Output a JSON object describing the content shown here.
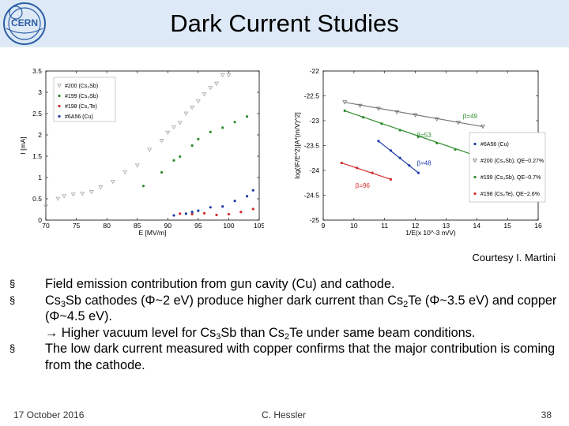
{
  "header": {
    "title": "Dark Current Studies",
    "logo_text": "CERN"
  },
  "chart_data": [
    {
      "type": "scatter",
      "xlabel": "E [MV/m]",
      "ylabel": "I [mA]",
      "xlim": [
        70,
        105
      ],
      "ylim": [
        0,
        3.5
      ],
      "xticks": [
        "70",
        "75",
        "80",
        "85",
        "90",
        "95",
        "100",
        "105"
      ],
      "yticks": [
        "0",
        "0.5",
        "1",
        "1.5",
        "2",
        "2.5",
        "3",
        "3.5"
      ],
      "legend_position": "top-left",
      "series": [
        {
          "name": "#200 (Cs3Sb)",
          "color": "#a8a8a8",
          "marker": "triangle",
          "points": [
            [
              70,
              0.32
            ],
            [
              72,
              0.5
            ],
            [
              73,
              0.56
            ],
            [
              74.5,
              0.6
            ],
            [
              76,
              0.62
            ],
            [
              77.5,
              0.66
            ],
            [
              79,
              0.77
            ],
            [
              81,
              0.9
            ],
            [
              83,
              1.12
            ],
            [
              85,
              1.28
            ],
            [
              87,
              1.65
            ],
            [
              89,
              1.86
            ],
            [
              90,
              2.05
            ],
            [
              91,
              2.18
            ],
            [
              92,
              2.28
            ],
            [
              93,
              2.5
            ],
            [
              94,
              2.64
            ],
            [
              95,
              2.79
            ],
            [
              96,
              2.95
            ],
            [
              97,
              3.1
            ],
            [
              98,
              3.2
            ],
            [
              99,
              3.4
            ],
            [
              100,
              3.4
            ]
          ]
        },
        {
          "name": "#199 (Cs3Sb)",
          "color": "#2e8b2e",
          "marker": "dot",
          "points": [
            [
              86,
              0.8
            ],
            [
              89,
              1.12
            ],
            [
              91,
              1.4
            ],
            [
              92,
              1.49
            ],
            [
              94,
              1.75
            ],
            [
              95,
              1.9
            ],
            [
              97,
              2.07
            ],
            [
              99,
              2.17
            ],
            [
              101,
              2.3
            ],
            [
              103,
              2.43
            ]
          ]
        },
        {
          "name": "#198 (Cs2Te)",
          "color": "#d22b2b",
          "marker": "dot",
          "points": [
            [
              92,
              0.15
            ],
            [
              94,
              0.14
            ],
            [
              96,
              0.16
            ],
            [
              98,
              0.12
            ],
            [
              100,
              0.14
            ],
            [
              102,
              0.19
            ],
            [
              104,
              0.26
            ]
          ]
        },
        {
          "name": "#6A56 (Cu)",
          "color": "#1f3da8",
          "marker": "dot",
          "points": [
            [
              91,
              0.11
            ],
            [
              93,
              0.15
            ],
            [
              94,
              0.19
            ],
            [
              95,
              0.22
            ],
            [
              97,
              0.3
            ],
            [
              99,
              0.32
            ],
            [
              101,
              0.45
            ],
            [
              103,
              0.56
            ],
            [
              104,
              0.7
            ]
          ]
        }
      ]
    },
    {
      "type": "line",
      "xlabel": "1/E(x 10^-3 m/V)",
      "ylabel": "log(IF/E^2)[A*(m/V)^2]",
      "xlim": [
        9,
        16
      ],
      "ylim": [
        -25,
        -22
      ],
      "xticks": [
        "9",
        "10",
        "11",
        "12",
        "13",
        "14",
        "15",
        "16"
      ],
      "yticks": [
        "-22",
        "-22.5",
        "-23",
        "-23.5",
        "-24",
        "-24.5",
        "-25"
      ],
      "legend_position": "bottom-right",
      "series": [
        {
          "name": "#6A56 (Cu)",
          "color": "#1f3da8",
          "marker": "dot",
          "fit": [
            [
              10.8,
              -23.41
            ],
            [
              12.1,
              -24.05
            ]
          ],
          "points": [
            [
              10.8,
              -23.41
            ],
            [
              11.2,
              -23.6
            ],
            [
              11.5,
              -23.75
            ],
            [
              11.8,
              -23.9
            ],
            [
              12.1,
              -24.05
            ]
          ]
        },
        {
          "name": "#200 (Cs3Sb), QE~0.27%",
          "color": "#777777",
          "marker": "triangle",
          "fit": [
            [
              9.7,
              -22.63
            ],
            [
              14.2,
              -23.12
            ]
          ],
          "points": [
            [
              9.7,
              -22.63
            ],
            [
              10.2,
              -22.7
            ],
            [
              10.8,
              -22.76
            ],
            [
              11.4,
              -22.83
            ],
            [
              12,
              -22.89
            ],
            [
              12.7,
              -22.97
            ],
            [
              13.4,
              -23.04
            ],
            [
              14.2,
              -23.12
            ]
          ]
        },
        {
          "name": "#199 (Cs3Sb), QE~0.7%",
          "color": "#2e8b2e",
          "marker": "dot",
          "fit": [
            [
              9.7,
              -22.8
            ],
            [
              13.9,
              -23.69
            ]
          ],
          "points": [
            [
              9.7,
              -22.8
            ],
            [
              10.3,
              -22.93
            ],
            [
              10.9,
              -23.06
            ],
            [
              11.5,
              -23.19
            ],
            [
              12.1,
              -23.32
            ],
            [
              12.7,
              -23.45
            ],
            [
              13.3,
              -23.58
            ],
            [
              13.9,
              -23.69
            ]
          ]
        },
        {
          "name": "#198 (Cs2Te), QE~2.6%",
          "color": "#d22b2b",
          "marker": "dot",
          "fit": [
            [
              9.6,
              -23.85
            ],
            [
              11.2,
              -24.18
            ]
          ],
          "points": [
            [
              9.6,
              -23.85
            ],
            [
              10.1,
              -23.95
            ],
            [
              10.6,
              -24.05
            ],
            [
              11.2,
              -24.18
            ]
          ]
        }
      ],
      "annotations": [
        {
          "text": "β=49",
          "x": 13.55,
          "y": -22.95,
          "color": "#2e8b2e"
        },
        {
          "text": "β=53",
          "x": 12.05,
          "y": -23.33,
          "color": "#2e8b2e"
        },
        {
          "text": "β=48",
          "x": 12.05,
          "y": -23.9,
          "color": "#1f3da8"
        },
        {
          "text": "β=96",
          "x": 10.05,
          "y": -24.35,
          "color": "#d22b2b"
        }
      ]
    }
  ],
  "credit": "Courtesy I. Martini",
  "bullets": [
    {
      "marker": "§",
      "parts": [
        {
          "t": "Field emission contribution from gun cavity (Cu) and cathode."
        }
      ]
    },
    {
      "marker": "§",
      "parts": [
        {
          "t": "Cs"
        },
        {
          "t": "3",
          "sub": true
        },
        {
          "t": "Sb cathodes ("
        },
        {
          "t": "Φ",
          "sym": true
        },
        {
          "t": "~2 eV) produce higher dark current than Cs"
        },
        {
          "t": "2",
          "sub": true
        },
        {
          "t": "Te ("
        },
        {
          "t": "Φ",
          "sym": true
        },
        {
          "t": "~3.5 eV) and copper ("
        },
        {
          "t": "Φ",
          "sym": true
        },
        {
          "t": "~4.5 eV)."
        },
        {
          "br": true
        },
        {
          "t": "→ Higher vacuum level for Cs"
        },
        {
          "t": "3",
          "sub": true
        },
        {
          "t": "Sb than Cs"
        },
        {
          "t": "2",
          "sub": true
        },
        {
          "t": "Te under same beam conditions."
        }
      ]
    },
    {
      "marker": "§",
      "parts": [
        {
          "t": "The low dark current measured with copper confirms that the major contribution is coming from the cathode."
        }
      ]
    }
  ],
  "footer": {
    "date": "17 October 2016",
    "author": "C. Hessler",
    "page": "38"
  }
}
